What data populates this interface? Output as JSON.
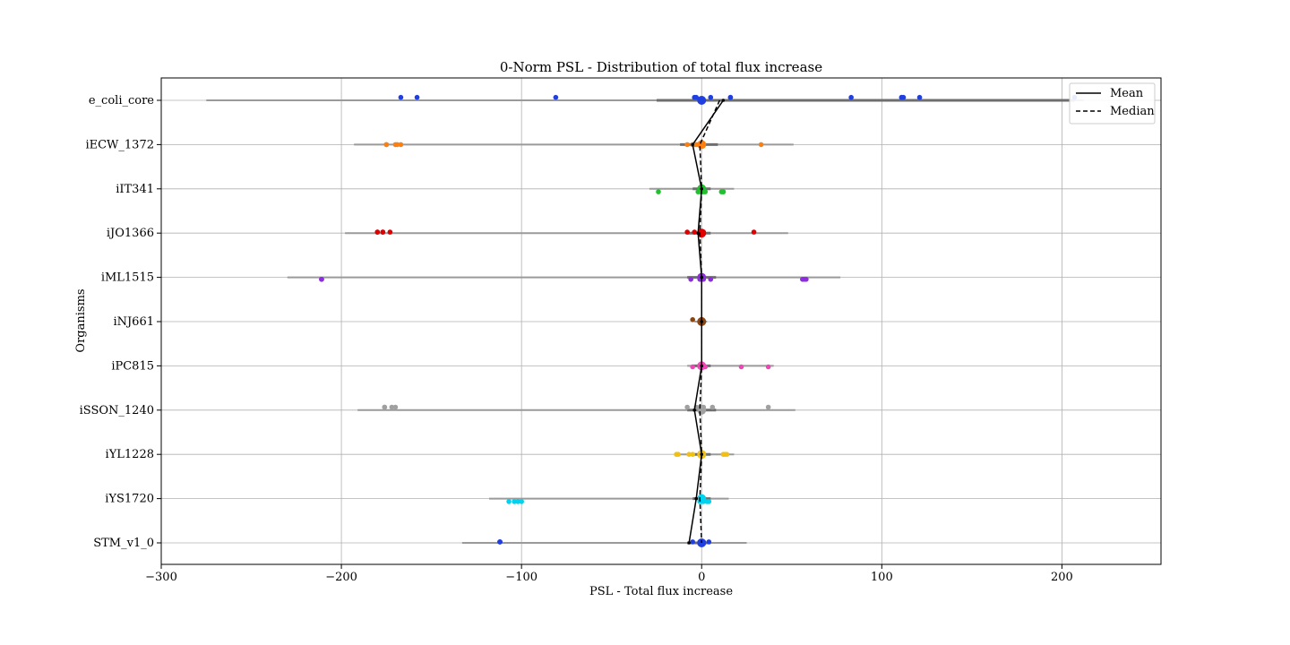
{
  "chart_data": {
    "type": "strip",
    "title": "0-Norm PSL - Distribution of total flux increase",
    "xlabel": "PSL - Total flux increase",
    "ylabel": "Organisms",
    "xlim": [
      -300,
      255
    ],
    "xticks": [
      -300,
      -200,
      -100,
      0,
      100,
      200
    ],
    "xtick_labels": [
      "−300",
      "−200",
      "−100",
      "0",
      "100",
      "200"
    ],
    "grid": true,
    "legend": {
      "placement": "top-right",
      "entries": [
        {
          "label": "Mean",
          "style": "solid"
        },
        {
          "label": "Median",
          "style": "dashed"
        }
      ]
    },
    "categories": [
      "e_coli_core",
      "iECW_1372",
      "iIT341",
      "iJO1366",
      "iML1515",
      "iNJ661",
      "iPC815",
      "iSSON_1240",
      "iYL1228",
      "iYS1720",
      "STM_v1_0"
    ],
    "series": [
      {
        "name": "e_coli_core",
        "color": "#1f3fe0",
        "range_gray": [
          -275,
          212
        ],
        "range_dark": [
          -25,
          207
        ],
        "mean": 12,
        "median": 10,
        "points": [
          -167,
          -158,
          -81,
          -4,
          -3,
          5,
          16,
          16,
          83,
          111,
          112,
          111,
          121,
          207
        ]
      },
      {
        "name": "iECW_1372",
        "color": "#ff7f0e",
        "range_gray": [
          -193,
          51
        ],
        "range_dark": [
          -12,
          9
        ],
        "mean": -5,
        "median": -1,
        "points": [
          -175,
          -175,
          -170,
          -169,
          -167,
          -8,
          -5,
          -3,
          -2,
          0,
          1,
          -4,
          33
        ]
      },
      {
        "name": "iIT341",
        "color": "#22c02f",
        "range_gray": [
          -29,
          18
        ],
        "range_dark": [
          -5,
          5
        ],
        "mean": 0,
        "median": 0,
        "points": [
          -24,
          -2,
          -1,
          0,
          1,
          2,
          11,
          12,
          12
        ]
      },
      {
        "name": "iJO1366",
        "color": "#e00000",
        "range_gray": [
          -198,
          48
        ],
        "range_dark": [
          -8,
          5
        ],
        "mean": -2,
        "median": -1,
        "points": [
          -180,
          -180,
          -177,
          -177,
          -173,
          -8,
          -4,
          -1,
          0,
          0,
          1,
          29
        ]
      },
      {
        "name": "iML1515",
        "color": "#8e2ddf",
        "range_gray": [
          -230,
          77
        ],
        "range_dark": [
          -8,
          8
        ],
        "mean": 0,
        "median": 0,
        "points": [
          -211,
          -211,
          -211,
          -6,
          -1,
          0,
          1,
          5,
          56,
          57,
          58
        ]
      },
      {
        "name": "iNJ661",
        "color": "#8b4513",
        "range_gray": [
          -4,
          3
        ],
        "range_dark": [
          -2,
          2
        ],
        "mean": 0,
        "median": 0,
        "points": [
          -5,
          0,
          0,
          0,
          0
        ]
      },
      {
        "name": "iPC815",
        "color": "#f046b5",
        "range_gray": [
          -8,
          40
        ],
        "range_dark": [
          -5,
          5
        ],
        "mean": 0,
        "median": 0,
        "points": [
          -5,
          -1,
          0,
          1,
          2,
          22,
          37
        ]
      },
      {
        "name": "iSSON_1240",
        "color": "#a0a0a0",
        "range_gray": [
          -191,
          52
        ],
        "range_dark": [
          -8,
          8
        ],
        "mean": -4,
        "median": -1,
        "points": [
          -176,
          -176,
          -172,
          -170,
          -8,
          -3,
          -1,
          0,
          1,
          6,
          37
        ]
      },
      {
        "name": "iYL1228",
        "color": "#f2c012",
        "range_gray": [
          -14,
          18
        ],
        "range_dark": [
          -5,
          5
        ],
        "mean": 0,
        "median": 0,
        "points": [
          -14,
          -13,
          -7,
          -5,
          -1,
          0,
          1,
          12,
          13,
          14
        ]
      },
      {
        "name": "iYS1720",
        "color": "#00d3f0",
        "range_gray": [
          -118,
          15
        ],
        "range_dark": [
          -5,
          5
        ],
        "mean": -3,
        "median": -1,
        "points": [
          -107,
          -104,
          -102,
          -100,
          -1,
          0,
          1,
          3,
          4
        ]
      },
      {
        "name": "STM_v1_0",
        "color": "#1f3fe0",
        "range_gray": [
          -133,
          25
        ],
        "range_dark": [
          -8,
          5
        ],
        "mean": -7,
        "median": 0,
        "points": [
          -112,
          -112,
          -112,
          -5,
          -1,
          0,
          1,
          4
        ]
      }
    ]
  }
}
